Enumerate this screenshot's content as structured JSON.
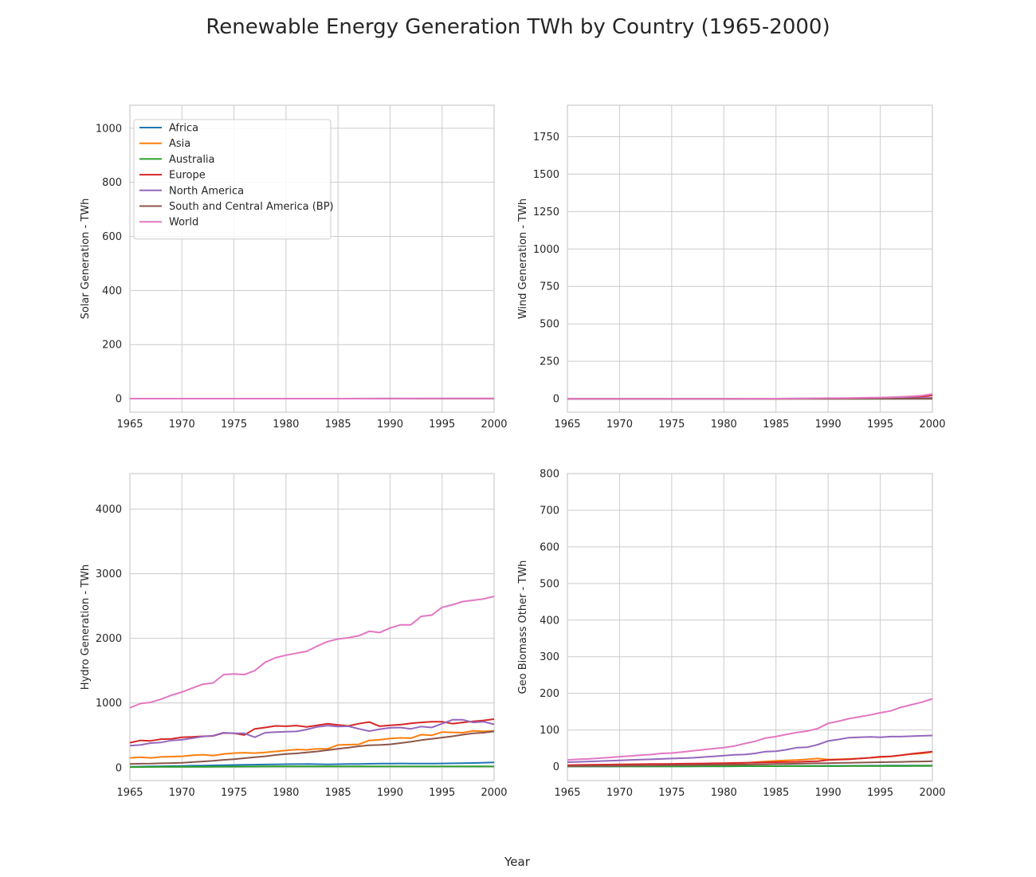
{
  "title": "Renewable Energy Generation TWh by Country (1965-2000)",
  "xlabel": "Year",
  "chart_data": [
    {
      "type": "line",
      "ylabel": "Solar Generation - TWh",
      "xlim": [
        1965,
        2000
      ],
      "ylim": [
        -50,
        1085
      ],
      "xticks": [
        1965,
        1970,
        1975,
        1980,
        1985,
        1990,
        1995,
        2000
      ],
      "yticks": [
        0,
        200,
        400,
        600,
        800,
        1000
      ],
      "grid": true,
      "legend": "top-left",
      "x": [
        1965,
        1970,
        1975,
        1980,
        1985,
        1990,
        1995,
        2000
      ],
      "series": [
        {
          "name": "Africa",
          "color": "#1f77b4",
          "values": [
            0,
            0,
            0,
            0,
            0,
            0,
            0,
            0
          ]
        },
        {
          "name": "Asia",
          "color": "#ff7f0e",
          "values": [
            0,
            0,
            0,
            0,
            0,
            0,
            0,
            0
          ]
        },
        {
          "name": "Australia",
          "color": "#2ca02c",
          "values": [
            0,
            0,
            0,
            0,
            0,
            0,
            0,
            0
          ]
        },
        {
          "name": "Europe",
          "color": "#d62728",
          "values": [
            0,
            0,
            0,
            0,
            0,
            0,
            0,
            0
          ]
        },
        {
          "name": "North America",
          "color": "#9467bd",
          "values": [
            0,
            0,
            0,
            0,
            0,
            0.4,
            0.5,
            0.5
          ]
        },
        {
          "name": "South and Central America (BP)",
          "color": "#8c564b",
          "values": [
            0,
            0,
            0,
            0,
            0,
            0,
            0,
            0
          ]
        },
        {
          "name": "World",
          "color": "#e377c2",
          "values": [
            0,
            0,
            0,
            0,
            0,
            0.4,
            0.6,
            1.1
          ]
        }
      ]
    },
    {
      "type": "line",
      "ylabel": "Wind Generation - TWh",
      "xlim": [
        1965,
        2000
      ],
      "ylim": [
        -90,
        1960
      ],
      "xticks": [
        1965,
        1970,
        1975,
        1980,
        1985,
        1990,
        1995,
        2000
      ],
      "yticks": [
        0,
        250,
        500,
        750,
        1000,
        1250,
        1500,
        1750
      ],
      "grid": true,
      "x": [
        1965,
        1970,
        1975,
        1980,
        1985,
        1988,
        1990,
        1992,
        1994,
        1995,
        1996,
        1997,
        1998,
        1999,
        2000
      ],
      "series": [
        {
          "name": "Africa",
          "color": "#1f77b4",
          "values": [
            0,
            0,
            0,
            0,
            0,
            0,
            0,
            0,
            0,
            0,
            0,
            0,
            0,
            0,
            0.2
          ]
        },
        {
          "name": "Asia",
          "color": "#ff7f0e",
          "values": [
            0,
            0,
            0,
            0,
            0,
            0,
            0,
            0,
            0.5,
            0.6,
            0.8,
            1.2,
            1.5,
            2.2,
            3
          ]
        },
        {
          "name": "Australia",
          "color": "#2ca02c",
          "values": [
            0,
            0,
            0,
            0,
            0,
            0,
            0,
            0,
            0,
            0,
            0,
            0,
            0,
            0,
            0.1
          ]
        },
        {
          "name": "Europe",
          "color": "#d62728",
          "values": [
            0,
            0,
            0,
            0,
            0,
            0.4,
            0.8,
            1.5,
            3,
            4,
            5,
            7,
            11,
            14,
            22
          ]
        },
        {
          "name": "North America",
          "color": "#9467bd",
          "values": [
            0,
            0,
            0,
            0,
            0.5,
            1.5,
            2.8,
            3,
            3.2,
            3.2,
            3.3,
            3.3,
            3.1,
            4.6,
            6
          ]
        },
        {
          "name": "South and Central America (BP)",
          "color": "#8c564b",
          "values": [
            0,
            0,
            0,
            0,
            0,
            0,
            0,
            0,
            0,
            0,
            0,
            0,
            0,
            0,
            0.1
          ]
        },
        {
          "name": "World",
          "color": "#e377c2",
          "values": [
            0,
            0,
            0,
            0,
            0.5,
            2,
            3.6,
            4.6,
            7,
            8,
            9.5,
            12,
            16,
            21,
            31
          ]
        }
      ]
    },
    {
      "type": "line",
      "ylabel": "Hydro Generation - TWh",
      "xlim": [
        1965,
        2000
      ],
      "ylim": [
        -200,
        4550
      ],
      "xticks": [
        1965,
        1970,
        1975,
        1980,
        1985,
        1990,
        1995,
        2000
      ],
      "yticks": [
        0,
        1000,
        2000,
        3000,
        4000
      ],
      "grid": true,
      "x": [
        1965,
        1966,
        1967,
        1968,
        1969,
        1970,
        1971,
        1972,
        1973,
        1974,
        1975,
        1976,
        1977,
        1978,
        1979,
        1980,
        1981,
        1982,
        1983,
        1984,
        1985,
        1986,
        1987,
        1988,
        1989,
        1990,
        1991,
        1992,
        1993,
        1994,
        1995,
        1996,
        1997,
        1998,
        1999,
        2000
      ],
      "series": [
        {
          "name": "Africa",
          "color": "#1f77b4",
          "values": [
            14,
            16,
            18,
            21,
            23,
            26,
            29,
            32,
            35,
            38,
            41,
            44,
            46,
            48,
            51,
            53,
            54,
            55,
            53,
            51,
            53,
            55,
            57,
            59,
            61,
            62,
            64,
            63,
            62,
            63,
            64,
            67,
            69,
            72,
            76,
            80
          ]
        },
        {
          "name": "Asia",
          "color": "#ff7f0e",
          "values": [
            150,
            160,
            150,
            165,
            170,
            175,
            190,
            200,
            185,
            210,
            225,
            230,
            225,
            235,
            250,
            265,
            280,
            275,
            290,
            290,
            350,
            355,
            360,
            420,
            430,
            450,
            460,
            455,
            510,
            500,
            550,
            545,
            540,
            570,
            560,
            570
          ]
        },
        {
          "name": "Australia",
          "color": "#2ca02c",
          "values": [
            9,
            10,
            11,
            12,
            13,
            13,
            14,
            14,
            15,
            16,
            16,
            17,
            17,
            18,
            18,
            19,
            19,
            19,
            19,
            19,
            19,
            19,
            19,
            19,
            19,
            20,
            20,
            20,
            20,
            20,
            20,
            20,
            20,
            20,
            20,
            20
          ]
        },
        {
          "name": "Europe",
          "color": "#d62728",
          "values": [
            385,
            420,
            415,
            440,
            445,
            470,
            475,
            485,
            490,
            535,
            530,
            505,
            600,
            620,
            645,
            640,
            650,
            630,
            655,
            680,
            660,
            645,
            680,
            705,
            640,
            655,
            665,
            685,
            700,
            710,
            710,
            680,
            700,
            715,
            730,
            750
          ]
        },
        {
          "name": "North America",
          "color": "#9467bd",
          "values": [
            340,
            350,
            380,
            390,
            420,
            430,
            455,
            480,
            495,
            540,
            530,
            530,
            470,
            540,
            550,
            555,
            560,
            590,
            630,
            650,
            635,
            640,
            600,
            565,
            595,
            615,
            620,
            600,
            635,
            620,
            680,
            740,
            740,
            700,
            710,
            670
          ]
        },
        {
          "name": "South and Central America (BP)",
          "color": "#8c564b",
          "values": [
            55,
            60,
            62,
            66,
            70,
            75,
            85,
            95,
            105,
            120,
            130,
            145,
            160,
            175,
            195,
            210,
            220,
            235,
            250,
            270,
            290,
            310,
            330,
            345,
            350,
            360,
            380,
            400,
            425,
            445,
            465,
            485,
            510,
            530,
            540,
            560
          ]
        },
        {
          "name": "World",
          "color": "#e377c2",
          "values": [
            925,
            990,
            1010,
            1060,
            1120,
            1170,
            1230,
            1290,
            1310,
            1440,
            1450,
            1440,
            1500,
            1630,
            1700,
            1740,
            1770,
            1800,
            1880,
            1950,
            1990,
            2010,
            2040,
            2110,
            2090,
            2160,
            2210,
            2210,
            2340,
            2360,
            2480,
            2520,
            2570,
            2590,
            2610,
            2650
          ]
        }
      ]
    },
    {
      "type": "line",
      "ylabel": "Geo Biomass Other - TWh",
      "xlim": [
        1965,
        2000
      ],
      "ylim": [
        -38,
        800
      ],
      "xticks": [
        1965,
        1970,
        1975,
        1980,
        1985,
        1990,
        1995,
        2000
      ],
      "yticks": [
        0,
        100,
        200,
        300,
        400,
        500,
        600,
        700,
        800
      ],
      "grid": true,
      "x": [
        1965,
        1966,
        1967,
        1968,
        1969,
        1970,
        1971,
        1972,
        1973,
        1974,
        1975,
        1976,
        1977,
        1978,
        1979,
        1980,
        1981,
        1982,
        1983,
        1984,
        1985,
        1986,
        1987,
        1988,
        1989,
        1990,
        1991,
        1992,
        1993,
        1994,
        1995,
        1996,
        1997,
        1998,
        1999,
        2000
      ],
      "series": [
        {
          "name": "Africa",
          "color": "#1f77b4",
          "values": [
            0.3,
            0.3,
            0.3,
            0.4,
            0.4,
            0.5,
            0.5,
            0.6,
            0.6,
            0.7,
            0.7,
            0.8,
            0.8,
            0.9,
            1,
            1,
            1.1,
            1.2,
            1.3,
            1.4,
            1.5,
            1.6,
            1.7,
            1.8,
            1.9,
            2,
            2.1,
            2.2,
            2.3,
            2.4,
            2.5,
            2.6,
            2.7,
            2.8,
            2.9,
            3
          ]
        },
        {
          "name": "Asia",
          "color": "#ff7f0e",
          "values": [
            1,
            1,
            1.2,
            1.4,
            1.6,
            2,
            2.2,
            2.5,
            3,
            3.5,
            4,
            4.5,
            5,
            5.5,
            6,
            7,
            8,
            10,
            12,
            14,
            16,
            17,
            18,
            20,
            22,
            19,
            20,
            21,
            22,
            24,
            26,
            28,
            31,
            34,
            36,
            40
          ]
        },
        {
          "name": "Australia",
          "color": "#2ca02c",
          "values": [
            0.5,
            0.5,
            0.5,
            0.6,
            0.6,
            0.6,
            0.7,
            0.7,
            0.7,
            0.8,
            0.8,
            0.8,
            0.9,
            0.9,
            1,
            1,
            1,
            1.1,
            1.1,
            1.2,
            1.2,
            1.3,
            1.3,
            1.4,
            1.4,
            1.5,
            1.5,
            1.6,
            1.6,
            1.7,
            1.8,
            1.8,
            1.9,
            2,
            2.1,
            2.2
          ]
        },
        {
          "name": "Europe",
          "color": "#d62728",
          "values": [
            4,
            4.5,
            5,
            5.3,
            5.6,
            6,
            6.3,
            6.6,
            7,
            7.3,
            7.6,
            8,
            8.3,
            8.6,
            9,
            9.5,
            10,
            10.5,
            11,
            11.5,
            12,
            12.5,
            13,
            14,
            15,
            18,
            19,
            20,
            22,
            24,
            27,
            28,
            31,
            35,
            38,
            41
          ]
        },
        {
          "name": "North America",
          "color": "#9467bd",
          "values": [
            12,
            13,
            14,
            15,
            16,
            17,
            18,
            19,
            20,
            21,
            22,
            23,
            24,
            26,
            28,
            30,
            32,
            33,
            36,
            41,
            42,
            46,
            52,
            53,
            60,
            70,
            74,
            79,
            80,
            81,
            80,
            82,
            82,
            83,
            84,
            85
          ]
        },
        {
          "name": "South and Central America (BP)",
          "color": "#8c564b",
          "values": [
            1,
            1.2,
            1.4,
            1.6,
            1.8,
            2,
            2.3,
            2.6,
            2.9,
            3.2,
            3.5,
            3.8,
            4.1,
            4.4,
            4.7,
            5,
            5.3,
            5.6,
            6,
            6.5,
            7,
            7.5,
            8,
            8.5,
            9,
            9.5,
            10,
            10.5,
            11,
            11.5,
            12,
            12.5,
            13,
            13.5,
            14,
            15
          ]
        },
        {
          "name": "World",
          "color": "#e377c2",
          "values": [
            18,
            20,
            21,
            23,
            25,
            27,
            29,
            31,
            33,
            36,
            37,
            40,
            43,
            46,
            49,
            52,
            56,
            63,
            69,
            78,
            82,
            88,
            93,
            97,
            104,
            118,
            124,
            131,
            136,
            141,
            147,
            152,
            162,
            169,
            176,
            185
          ]
        }
      ]
    }
  ]
}
